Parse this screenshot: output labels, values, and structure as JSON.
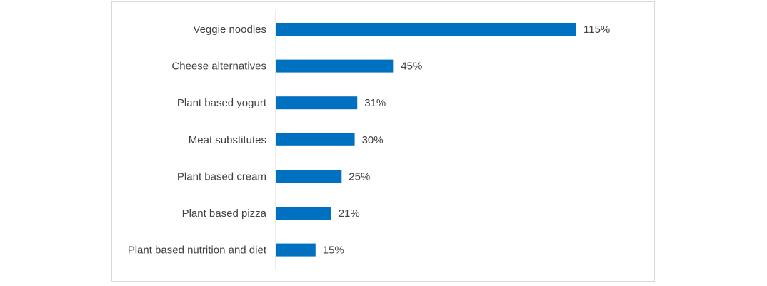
{
  "chart_data": {
    "type": "bar",
    "orientation": "horizontal",
    "title": "",
    "xlabel": "",
    "ylabel": "",
    "categories": [
      "Veggie noodles",
      "Cheese alternatives",
      "Plant based yogurt",
      "Meat substitutes",
      "Plant based cream",
      "Plant based pizza",
      "Plant based nutrition and diet"
    ],
    "values": [
      115,
      45,
      31,
      30,
      25,
      21,
      15
    ],
    "value_labels": [
      "115%",
      "45%",
      "31%",
      "30%",
      "25%",
      "21%",
      "15%"
    ],
    "unit": "%",
    "xlim": [
      0,
      120
    ],
    "bar_color": "#0070C0",
    "grid": false,
    "legend": "none"
  }
}
